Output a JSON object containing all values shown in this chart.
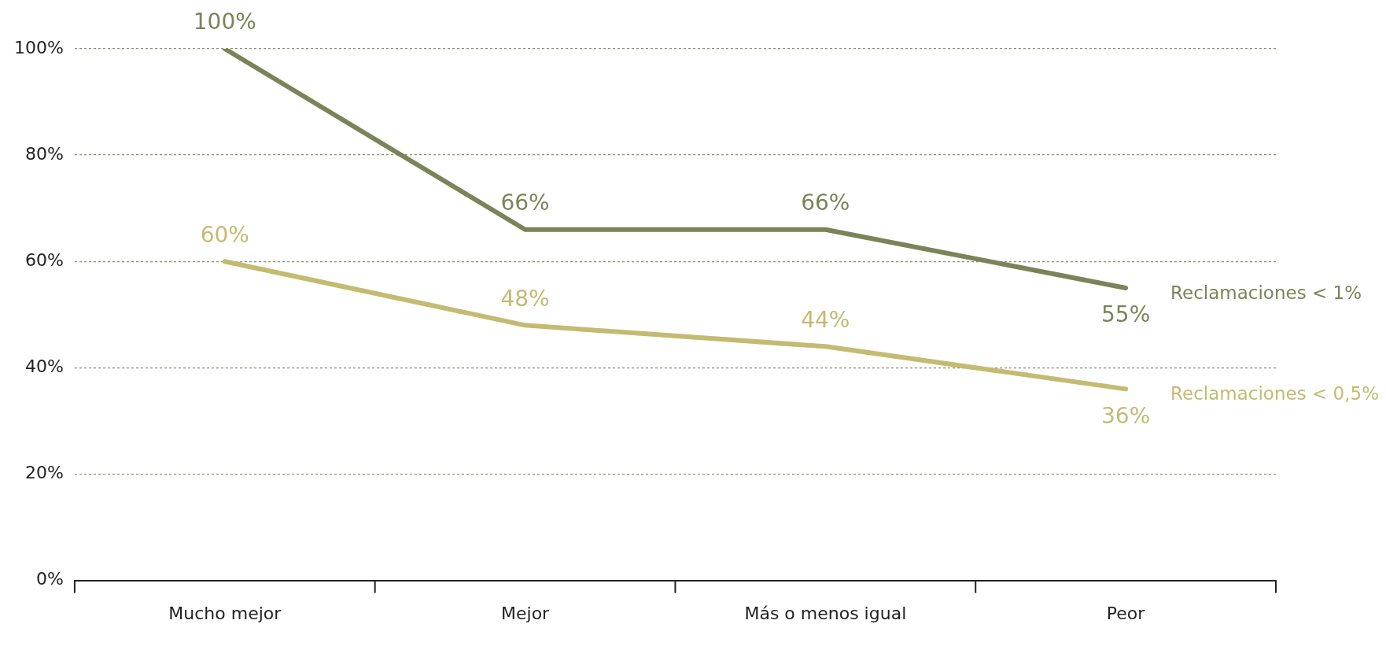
{
  "chart_data": {
    "type": "line",
    "categories": [
      "Mucho mejor",
      "Mejor",
      "Más o menos igual",
      "Peor"
    ],
    "series": [
      {
        "name": "Reclamaciones < 1%",
        "color": "#7a8458",
        "values": [
          100,
          66,
          66,
          55
        ],
        "value_labels": [
          "100%",
          "66%",
          "66%",
          "55%"
        ]
      },
      {
        "name": "Reclamaciones < 0,5%",
        "color": "#c4bb72",
        "values": [
          60,
          48,
          44,
          36
        ],
        "value_labels": [
          "60%",
          "48%",
          "44%",
          "36%"
        ]
      }
    ],
    "ylim": [
      0,
      100
    ],
    "yticks": [
      {
        "value": 0,
        "label": "0%"
      },
      {
        "value": 20,
        "label": "20%"
      },
      {
        "value": 40,
        "label": "40%"
      },
      {
        "value": 60,
        "label": "60%"
      },
      {
        "value": 80,
        "label": "80%"
      },
      {
        "value": 100,
        "label": "100%"
      }
    ],
    "grid": "y",
    "legend": false,
    "marker": "none",
    "line_style": "solid"
  }
}
